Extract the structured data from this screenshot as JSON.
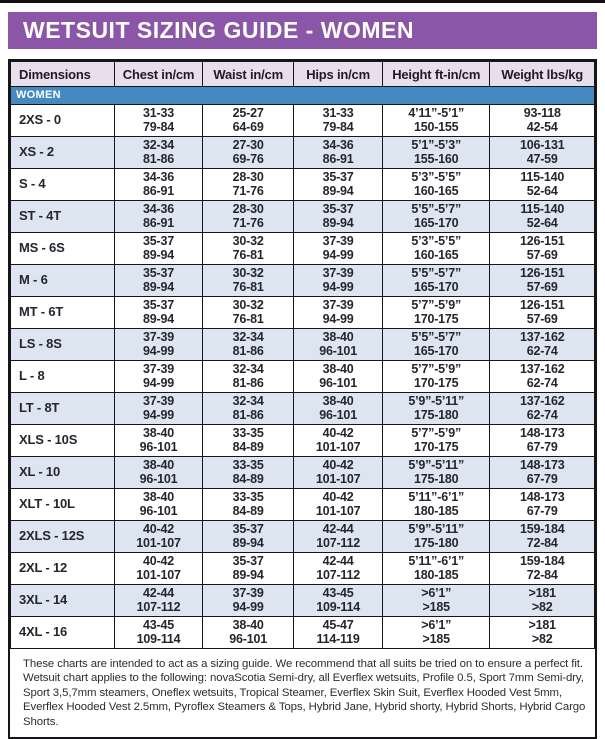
{
  "title": "WETSUIT SIZING GUIDE - WOMEN",
  "colors": {
    "title_bg": "#8b55a8",
    "header_bg": "#e8dfec",
    "section_bg": "#4489bf",
    "row_alt_bg": "#dce5f0",
    "border": "#161618",
    "text": "#25252e"
  },
  "table": {
    "columns": [
      "Dimensions",
      "Chest in/cm",
      "Waist in/cm",
      "Hips in/cm",
      "Height ft-in/cm",
      "Weight lbs/kg"
    ],
    "section_label": "WOMEN",
    "rows": [
      {
        "size": "2XS - 0",
        "chest": [
          "31-33",
          "79-84"
        ],
        "waist": [
          "25-27",
          "64-69"
        ],
        "hips": [
          "31-33",
          "79-84"
        ],
        "height": [
          "4’11”-5’1”",
          "150-155"
        ],
        "weight": [
          "93-118",
          "42-54"
        ]
      },
      {
        "size": "XS - 2",
        "chest": [
          "32-34",
          "81-86"
        ],
        "waist": [
          "27-30",
          "69-76"
        ],
        "hips": [
          "34-36",
          "86-91"
        ],
        "height": [
          "5’1”-5’3”",
          "155-160"
        ],
        "weight": [
          "106-131",
          "47-59"
        ]
      },
      {
        "size": "S - 4",
        "chest": [
          "34-36",
          "86-91"
        ],
        "waist": [
          "28-30",
          "71-76"
        ],
        "hips": [
          "35-37",
          "89-94"
        ],
        "height": [
          "5’3”-5’5”",
          "160-165"
        ],
        "weight": [
          "115-140",
          "52-64"
        ]
      },
      {
        "size": "ST - 4T",
        "chest": [
          "34-36",
          "86-91"
        ],
        "waist": [
          "28-30",
          "71-76"
        ],
        "hips": [
          "35-37",
          "89-94"
        ],
        "height": [
          "5’5”-5’7”",
          "165-170"
        ],
        "weight": [
          "115-140",
          "52-64"
        ]
      },
      {
        "size": "MS - 6S",
        "chest": [
          "35-37",
          "89-94"
        ],
        "waist": [
          "30-32",
          "76-81"
        ],
        "hips": [
          "37-39",
          "94-99"
        ],
        "height": [
          "5’3”-5’5”",
          "160-165"
        ],
        "weight": [
          "126-151",
          "57-69"
        ]
      },
      {
        "size": "M - 6",
        "chest": [
          "35-37",
          "89-94"
        ],
        "waist": [
          "30-32",
          "76-81"
        ],
        "hips": [
          "37-39",
          "94-99"
        ],
        "height": [
          "5’5”-5’7”",
          "165-170"
        ],
        "weight": [
          "126-151",
          "57-69"
        ]
      },
      {
        "size": "MT - 6T",
        "chest": [
          "35-37",
          "89-94"
        ],
        "waist": [
          "30-32",
          "76-81"
        ],
        "hips": [
          "37-39",
          "94-99"
        ],
        "height": [
          "5’7”-5’9”",
          "170-175"
        ],
        "weight": [
          "126-151",
          "57-69"
        ]
      },
      {
        "size": "LS - 8S",
        "chest": [
          "37-39",
          "94-99"
        ],
        "waist": [
          "32-34",
          "81-86"
        ],
        "hips": [
          "38-40",
          "96-101"
        ],
        "height": [
          "5’5”-5’7”",
          "165-170"
        ],
        "weight": [
          "137-162",
          "62-74"
        ]
      },
      {
        "size": "L - 8",
        "chest": [
          "37-39",
          "94-99"
        ],
        "waist": [
          "32-34",
          "81-86"
        ],
        "hips": [
          "38-40",
          "96-101"
        ],
        "height": [
          "5’7”-5’9”",
          "170-175"
        ],
        "weight": [
          "137-162",
          "62-74"
        ]
      },
      {
        "size": "LT - 8T",
        "chest": [
          "37-39",
          "94-99"
        ],
        "waist": [
          "32-34",
          "81-86"
        ],
        "hips": [
          "38-40",
          "96-101"
        ],
        "height": [
          "5’9”-5’11”",
          "175-180"
        ],
        "weight": [
          "137-162",
          "62-74"
        ]
      },
      {
        "size": "XLS - 10S",
        "chest": [
          "38-40",
          "96-101"
        ],
        "waist": [
          "33-35",
          "84-89"
        ],
        "hips": [
          "40-42",
          "101-107"
        ],
        "height": [
          "5’7”-5’9”",
          "170-175"
        ],
        "weight": [
          "148-173",
          "67-79"
        ]
      },
      {
        "size": "XL - 10",
        "chest": [
          "38-40",
          "96-101"
        ],
        "waist": [
          "33-35",
          "84-89"
        ],
        "hips": [
          "40-42",
          "101-107"
        ],
        "height": [
          "5’9”-5’11”",
          "175-180"
        ],
        "weight": [
          "148-173",
          "67-79"
        ]
      },
      {
        "size": "XLT - 10L",
        "chest": [
          "38-40",
          "96-101"
        ],
        "waist": [
          "33-35",
          "84-89"
        ],
        "hips": [
          "40-42",
          "101-107"
        ],
        "height": [
          "5’11”-6’1”",
          "180-185"
        ],
        "weight": [
          "148-173",
          "67-79"
        ]
      },
      {
        "size": "2XLS - 12S",
        "chest": [
          "40-42",
          "101-107"
        ],
        "waist": [
          "35-37",
          "89-94"
        ],
        "hips": [
          "42-44",
          "107-112"
        ],
        "height": [
          "5’9”-5’11”",
          "175-180"
        ],
        "weight": [
          "159-184",
          "72-84"
        ]
      },
      {
        "size": "2XL - 12",
        "chest": [
          "40-42",
          "101-107"
        ],
        "waist": [
          "35-37",
          "89-94"
        ],
        "hips": [
          "42-44",
          "107-112"
        ],
        "height": [
          "5’11”-6’1”",
          "180-185"
        ],
        "weight": [
          "159-184",
          "72-84"
        ]
      },
      {
        "size": "3XL - 14",
        "chest": [
          "42-44",
          "107-112"
        ],
        "waist": [
          "37-39",
          "94-99"
        ],
        "hips": [
          "43-45",
          "109-114"
        ],
        "height": [
          ">6’1”",
          ">185"
        ],
        "weight": [
          ">181",
          ">82"
        ]
      },
      {
        "size": "4XL - 16",
        "chest": [
          "43-45",
          "109-114"
        ],
        "waist": [
          "38-40",
          "96-101"
        ],
        "hips": [
          "45-47",
          "114-119"
        ],
        "height": [
          ">6’1”",
          ">185"
        ],
        "weight": [
          ">181",
          ">82"
        ]
      }
    ]
  },
  "notes": [
    "These charts are intended to act as a sizing guide. We recommend that all suits be tried on to ensure a perfect fit.",
    "Wetsuit chart applies to the following: novaScotia Semi-dry, all Everflex wetsuits, Profile 0.5, Sport 7mm Semi-dry,",
    "Sport 3,5,7mm steamers, Oneflex wetsuits, Tropical Steamer, Everflex Skin Suit, Everflex Hooded Vest 5mm,",
    "Everflex Hooded Vest  2.5mm, Pyroflex Steamers & Tops, Hybrid Jane, Hybrid shorty, Hybrid Shorts, Hybrid Cargo Shorts."
  ]
}
